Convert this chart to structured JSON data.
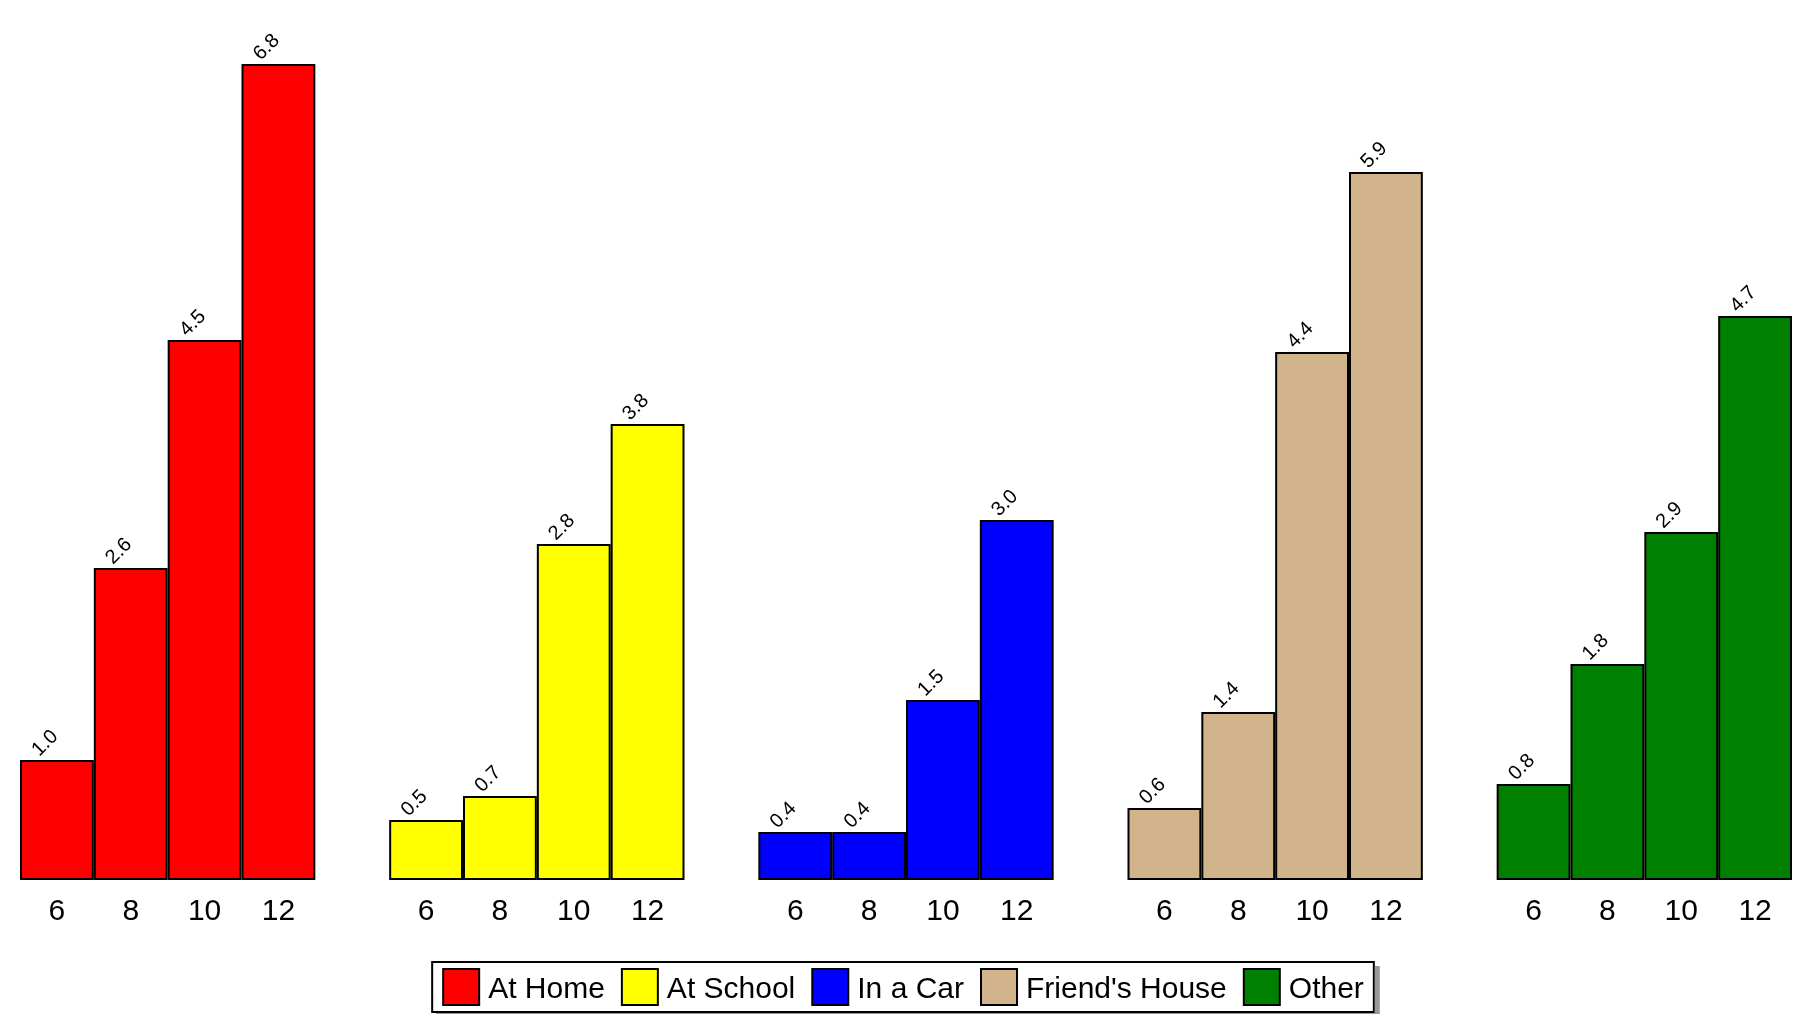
{
  "chart_data": {
    "type": "bar",
    "categories": [
      "6",
      "8",
      "10",
      "12",
      null,
      "6",
      "8",
      "10",
      "12",
      null,
      "6",
      "8",
      "10",
      "12",
      null,
      "6",
      "8",
      "10",
      "12",
      null,
      "6",
      "8",
      "10",
      "12"
    ],
    "stacked": true,
    "legend": "bottom",
    "grid": false,
    "series": [
      {
        "name": "At Home",
        "color": "#ff0000",
        "values": [
          1.0,
          2.6,
          4.5,
          6.8,
          null,
          null,
          null,
          null,
          null,
          null,
          null,
          null,
          null,
          null,
          null,
          null,
          null,
          null,
          null,
          null,
          null,
          null,
          null,
          null
        ],
        "value_labels": [
          "1.0",
          "2.6",
          "4.5",
          "6.8",
          null,
          null,
          null,
          null,
          null,
          null,
          null,
          null,
          null,
          null,
          null,
          null,
          null,
          null,
          null,
          null,
          null,
          null,
          null,
          null
        ]
      },
      {
        "name": "At School",
        "color": "#ffff00",
        "values": [
          null,
          null,
          null,
          null,
          null,
          0.5,
          0.7,
          2.8,
          3.8,
          null,
          null,
          null,
          null,
          null,
          null,
          null,
          null,
          null,
          null,
          null,
          null,
          null,
          null,
          null
        ],
        "value_labels": [
          null,
          null,
          null,
          null,
          null,
          "0.5",
          "0.7",
          "2.8",
          "3.8",
          null,
          null,
          null,
          null,
          null,
          null,
          null,
          null,
          null,
          null,
          null,
          null,
          null,
          null,
          null
        ]
      },
      {
        "name": "In a Car",
        "color": "#0000ff",
        "values": [
          null,
          null,
          null,
          null,
          null,
          null,
          null,
          null,
          null,
          null,
          0.4,
          0.4,
          1.5,
          3.0,
          null,
          null,
          null,
          null,
          null,
          null,
          null,
          null,
          null,
          null
        ],
        "value_labels": [
          null,
          null,
          null,
          null,
          null,
          null,
          null,
          null,
          null,
          null,
          "0.4",
          "0.4",
          "1.5",
          "3.0",
          null,
          null,
          null,
          null,
          null,
          null,
          null,
          null,
          null,
          null
        ]
      },
      {
        "name": "Friend's House",
        "color": "#d2b48c",
        "values": [
          null,
          null,
          null,
          null,
          null,
          null,
          null,
          null,
          null,
          null,
          null,
          null,
          null,
          null,
          null,
          0.6,
          1.4,
          4.4,
          5.9,
          null,
          null,
          null,
          null,
          null
        ],
        "value_labels": [
          null,
          null,
          null,
          null,
          null,
          null,
          null,
          null,
          null,
          null,
          null,
          null,
          null,
          null,
          null,
          "0.6",
          "1.4",
          "4.4",
          "5.9",
          null,
          null,
          null,
          null,
          null
        ]
      },
      {
        "name": "Other",
        "color": "#008000",
        "values": [
          null,
          null,
          null,
          null,
          null,
          null,
          null,
          null,
          null,
          null,
          null,
          null,
          null,
          null,
          null,
          null,
          null,
          null,
          null,
          null,
          0.8,
          1.8,
          2.9,
          4.7
        ],
        "value_labels": [
          null,
          null,
          null,
          null,
          null,
          null,
          null,
          null,
          null,
          null,
          null,
          null,
          null,
          null,
          null,
          null,
          null,
          null,
          null,
          null,
          "0.8",
          "1.8",
          "2.9",
          "4.7"
        ]
      }
    ]
  }
}
